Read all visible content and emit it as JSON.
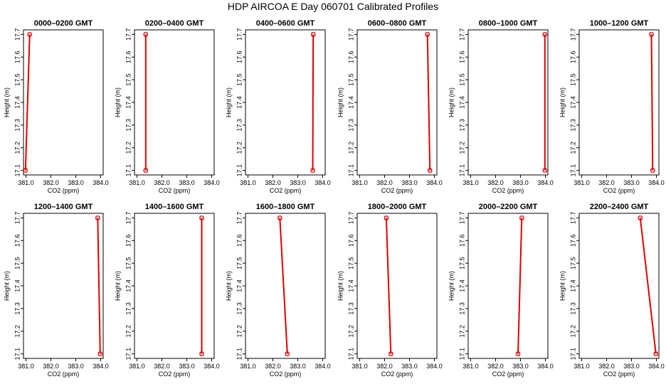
{
  "title": "HDP  AIRCOA E  Day 060701  Calibrated Profiles",
  "colors": {
    "series": "#e00000",
    "axis": "#000000",
    "background": "#ffffff"
  },
  "chart_data": [
    {
      "type": "line",
      "panel_title": "0000–0200 GMT",
      "xlabel": "CO2 (ppm)",
      "ylabel": "Height (m)",
      "xlim": [
        380.9,
        384.1
      ],
      "ylim": [
        17.08,
        17.72
      ],
      "xticks": [
        "381.0",
        "382.0",
        "383.0",
        "384.0"
      ],
      "yticks": [
        "17.1",
        "17.2",
        "17.3",
        "17.4",
        "17.5",
        "17.6",
        "17.7"
      ],
      "points": [
        {
          "x": 381.15,
          "y": 17.7
        },
        {
          "x": 380.98,
          "y": 17.1
        }
      ]
    },
    {
      "type": "line",
      "panel_title": "0200–0400 GMT",
      "xlabel": "CO2 (ppm)",
      "ylabel": "Height (m)",
      "xlim": [
        380.9,
        384.1
      ],
      "ylim": [
        17.08,
        17.72
      ],
      "xticks": [
        "381.0",
        "382.0",
        "383.0",
        "384.0"
      ],
      "yticks": [
        "17.1",
        "17.2",
        "17.3",
        "17.4",
        "17.5",
        "17.6",
        "17.7"
      ],
      "points": [
        {
          "x": 381.35,
          "y": 17.7
        },
        {
          "x": 381.35,
          "y": 17.1
        }
      ]
    },
    {
      "type": "line",
      "panel_title": "0400–0600 GMT",
      "xlabel": "CO2 (ppm)",
      "ylabel": "Height (m)",
      "xlim": [
        380.9,
        384.1
      ],
      "ylim": [
        17.08,
        17.72
      ],
      "xticks": [
        "381.0",
        "382.0",
        "383.0",
        "384.0"
      ],
      "yticks": [
        "17.1",
        "17.2",
        "17.3",
        "17.4",
        "17.5",
        "17.6",
        "17.7"
      ],
      "points": [
        {
          "x": 383.62,
          "y": 17.7
        },
        {
          "x": 383.6,
          "y": 17.1
        }
      ]
    },
    {
      "type": "line",
      "panel_title": "0600–0800 GMT",
      "xlabel": "CO2 (ppm)",
      "ylabel": "Height (m)",
      "xlim": [
        380.9,
        384.1
      ],
      "ylim": [
        17.08,
        17.72
      ],
      "xticks": [
        "381.0",
        "382.0",
        "383.0",
        "384.0"
      ],
      "yticks": [
        "17.1",
        "17.2",
        "17.3",
        "17.4",
        "17.5",
        "17.6",
        "17.7"
      ],
      "points": [
        {
          "x": 383.72,
          "y": 17.7
        },
        {
          "x": 383.82,
          "y": 17.1
        }
      ]
    },
    {
      "type": "line",
      "panel_title": "0800–1000 GMT",
      "xlabel": "CO2 (ppm)",
      "ylabel": "Height (m)",
      "xlim": [
        380.9,
        384.1
      ],
      "ylim": [
        17.08,
        17.72
      ],
      "xticks": [
        "381.0",
        "382.0",
        "383.0",
        "384.0"
      ],
      "yticks": [
        "17.1",
        "17.2",
        "17.3",
        "17.4",
        "17.5",
        "17.6",
        "17.7"
      ],
      "points": [
        {
          "x": 383.98,
          "y": 17.7
        },
        {
          "x": 383.98,
          "y": 17.1
        }
      ]
    },
    {
      "type": "line",
      "panel_title": "1000–1200 GMT",
      "xlabel": "CO2 (ppm)",
      "ylabel": "Height (m)",
      "xlim": [
        380.9,
        384.1
      ],
      "ylim": [
        17.08,
        17.72
      ],
      "xticks": [
        "381.0",
        "382.0",
        "383.0",
        "384.0"
      ],
      "yticks": [
        "17.1",
        "17.2",
        "17.3",
        "17.4",
        "17.5",
        "17.6",
        "17.7"
      ],
      "points": [
        {
          "x": 383.8,
          "y": 17.7
        },
        {
          "x": 383.85,
          "y": 17.1
        }
      ]
    },
    {
      "type": "line",
      "panel_title": "1200–1400 GMT",
      "xlabel": "CO2 (ppm)",
      "ylabel": "Height (m)",
      "xlim": [
        380.9,
        384.1
      ],
      "ylim": [
        17.08,
        17.72
      ],
      "xticks": [
        "381.0",
        "382.0",
        "383.0",
        "384.0"
      ],
      "yticks": [
        "17.1",
        "17.2",
        "17.3",
        "17.4",
        "17.5",
        "17.6",
        "17.7"
      ],
      "points": [
        {
          "x": 383.88,
          "y": 17.7
        },
        {
          "x": 383.98,
          "y": 17.1
        }
      ]
    },
    {
      "type": "line",
      "panel_title": "1400–1600 GMT",
      "xlabel": "CO2 (ppm)",
      "ylabel": "Height (m)",
      "xlim": [
        380.9,
        384.1
      ],
      "ylim": [
        17.08,
        17.72
      ],
      "xticks": [
        "381.0",
        "382.0",
        "383.0",
        "384.0"
      ],
      "yticks": [
        "17.1",
        "17.2",
        "17.3",
        "17.4",
        "17.5",
        "17.6",
        "17.7"
      ],
      "points": [
        {
          "x": 383.6,
          "y": 17.7
        },
        {
          "x": 383.6,
          "y": 17.1
        }
      ]
    },
    {
      "type": "line",
      "panel_title": "1600–1800 GMT",
      "xlabel": "CO2 (ppm)",
      "ylabel": "Height (m)",
      "xlim": [
        380.9,
        384.1
      ],
      "ylim": [
        17.08,
        17.72
      ],
      "xticks": [
        "381.0",
        "382.0",
        "383.0",
        "384.0"
      ],
      "yticks": [
        "17.1",
        "17.2",
        "17.3",
        "17.4",
        "17.5",
        "17.6",
        "17.7"
      ],
      "points": [
        {
          "x": 382.28,
          "y": 17.7
        },
        {
          "x": 382.58,
          "y": 17.1
        }
      ]
    },
    {
      "type": "line",
      "panel_title": "1800–2000 GMT",
      "xlabel": "CO2 (ppm)",
      "ylabel": "Height (m)",
      "xlim": [
        380.9,
        384.1
      ],
      "ylim": [
        17.08,
        17.72
      ],
      "xticks": [
        "381.0",
        "382.0",
        "383.0",
        "384.0"
      ],
      "yticks": [
        "17.1",
        "17.2",
        "17.3",
        "17.4",
        "17.5",
        "17.6",
        "17.7"
      ],
      "points": [
        {
          "x": 382.07,
          "y": 17.7
        },
        {
          "x": 382.25,
          "y": 17.1
        }
      ]
    },
    {
      "type": "line",
      "panel_title": "2000–2200 GMT",
      "xlabel": "CO2 (ppm)",
      "ylabel": "Height (m)",
      "xlim": [
        380.9,
        384.1
      ],
      "ylim": [
        17.08,
        17.72
      ],
      "xticks": [
        "381.0",
        "382.0",
        "383.0",
        "384.0"
      ],
      "yticks": [
        "17.1",
        "17.2",
        "17.3",
        "17.4",
        "17.5",
        "17.6",
        "17.7"
      ],
      "points": [
        {
          "x": 383.05,
          "y": 17.7
        },
        {
          "x": 382.9,
          "y": 17.1
        }
      ]
    },
    {
      "type": "line",
      "panel_title": "2200–2400 GMT",
      "xlabel": "CO2 (ppm)",
      "ylabel": "Height (m)",
      "xlim": [
        380.9,
        384.1
      ],
      "ylim": [
        17.08,
        17.72
      ],
      "xticks": [
        "381.0",
        "382.0",
        "383.0",
        "384.0"
      ],
      "yticks": [
        "17.1",
        "17.2",
        "17.3",
        "17.4",
        "17.5",
        "17.6",
        "17.7"
      ],
      "points": [
        {
          "x": 383.35,
          "y": 17.7
        },
        {
          "x": 383.98,
          "y": 17.1
        }
      ]
    }
  ]
}
